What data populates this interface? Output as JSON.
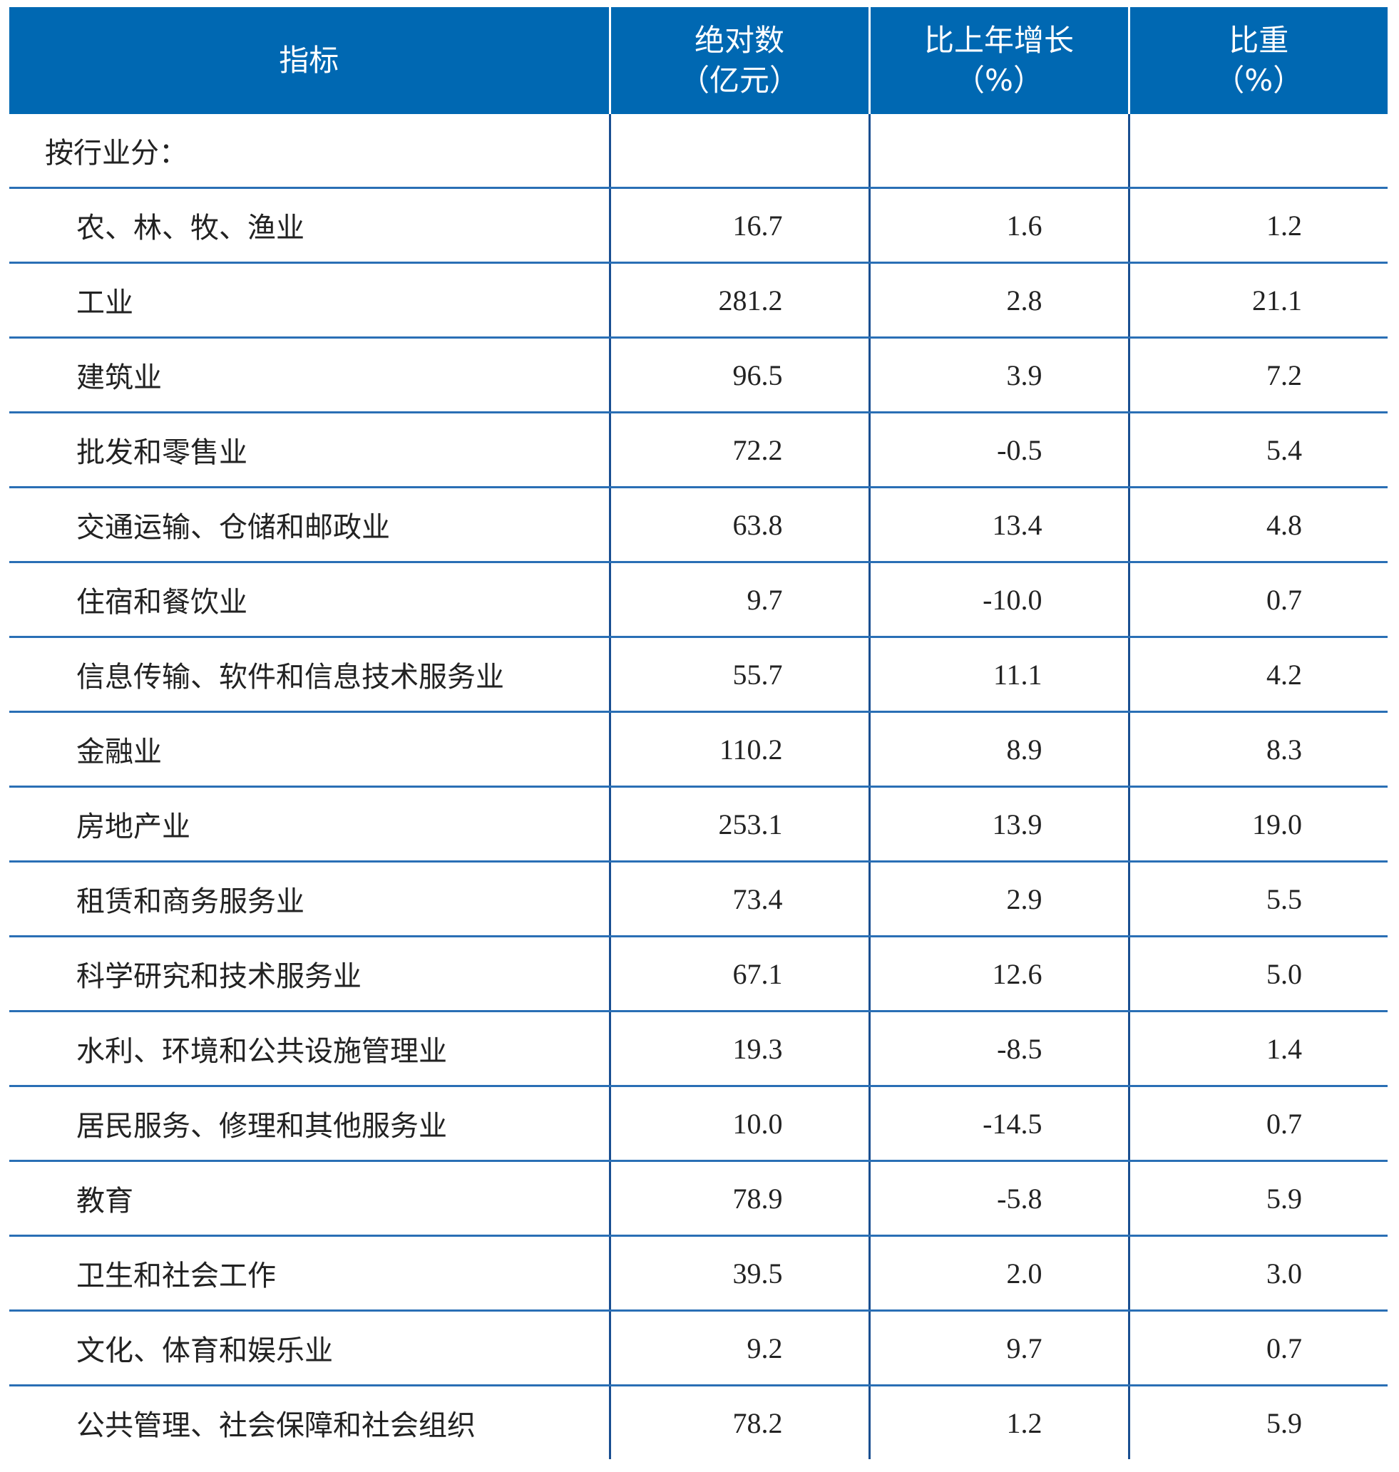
{
  "table": {
    "header": [
      [
        "指标"
      ],
      [
        "绝对数",
        "（亿元）"
      ],
      [
        "比上年增长",
        "（%）"
      ],
      [
        "比重",
        "（%）"
      ]
    ],
    "section": "按行业分：",
    "rows": [
      [
        "农、林、牧、渔业",
        "16.7",
        "1.6",
        "1.2"
      ],
      [
        "工业",
        "281.2",
        "2.8",
        "21.1"
      ],
      [
        "建筑业",
        "96.5",
        "3.9",
        "7.2"
      ],
      [
        "批发和零售业",
        "72.2",
        "-0.5",
        "5.4"
      ],
      [
        "交通运输、仓储和邮政业",
        "63.8",
        "13.4",
        "4.8"
      ],
      [
        "住宿和餐饮业",
        "9.7",
        "-10.0",
        "0.7"
      ],
      [
        "信息传输、软件和信息技术服务业",
        "55.7",
        "11.1",
        "4.2"
      ],
      [
        "金融业",
        "110.2",
        "8.9",
        "8.3"
      ],
      [
        "房地产业",
        "253.1",
        "13.9",
        "19.0"
      ],
      [
        "租赁和商务服务业",
        "73.4",
        "2.9",
        "5.5"
      ],
      [
        "科学研究和技术服务业",
        "67.1",
        "12.6",
        "5.0"
      ],
      [
        "水利、环境和公共设施管理业",
        "19.3",
        "-8.5",
        "1.4"
      ],
      [
        "居民服务、修理和其他服务业",
        "10.0",
        "-14.5",
        "0.7"
      ],
      [
        "教育",
        "78.9",
        "-5.8",
        "5.9"
      ],
      [
        "卫生和社会工作",
        "39.5",
        "2.0",
        "3.0"
      ],
      [
        "文化、体育和娱乐业",
        "9.2",
        "9.7",
        "0.7"
      ],
      [
        "公共管理、社会保障和社会组织",
        "78.2",
        "1.2",
        "5.9"
      ]
    ]
  }
}
